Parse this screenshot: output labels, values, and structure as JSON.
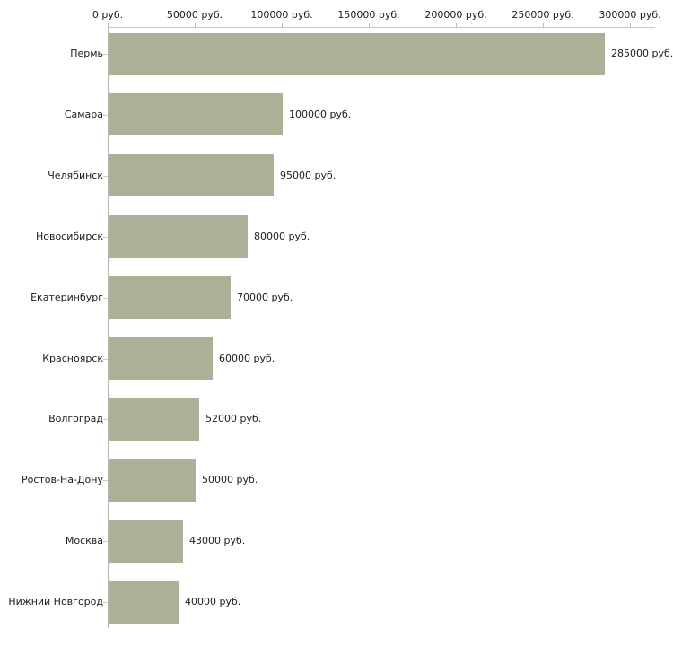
{
  "chart_data": {
    "type": "bar",
    "orientation": "horizontal",
    "title": "",
    "xlabel": "",
    "ylabel": "",
    "unit": "руб.",
    "categories": [
      "Пермь",
      "Самара",
      "Челябинск",
      "Новосибирск",
      "Екатеринбург",
      "Красноярск",
      "Волгоград",
      "Ростов-На-Дону",
      "Москва",
      "Нижний Новгород"
    ],
    "values": [
      285000,
      100000,
      95000,
      80000,
      70000,
      60000,
      52000,
      50000,
      43000,
      40000
    ],
    "value_labels": [
      "285000 руб.",
      "100000 руб.",
      "95000 руб.",
      "80000 руб.",
      "70000 руб.",
      "60000 руб.",
      "52000 руб.",
      "50000 руб.",
      "43000 руб.",
      "40000 руб."
    ],
    "xlim": [
      0,
      300000
    ],
    "x_ticks": [
      0,
      50000,
      100000,
      150000,
      200000,
      250000,
      300000
    ],
    "x_tick_labels": [
      "0 руб.",
      "50000 руб.",
      "100000 руб.",
      "150000 руб.",
      "200000 руб.",
      "250000 руб.",
      "300000 руб."
    ],
    "grid": false,
    "legend": false,
    "colors": {
      "bar": "#acb096",
      "x_axis_line": "#c9ccbc",
      "y_axis_line": "#b6b7b3",
      "tick": "#bcc0a9",
      "text": "#1c1c1c",
      "background": "#ffffff"
    }
  }
}
